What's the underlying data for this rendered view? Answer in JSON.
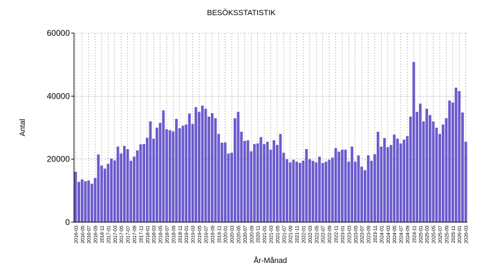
{
  "chart_data": {
    "type": "bar",
    "title": "BESÖKSSTATISTIK",
    "x_label": "År-Månad",
    "y_label": "Antal",
    "categories": [
      "2016-03",
      null,
      "2016-05",
      null,
      "2016-07",
      null,
      "2016-09",
      null,
      "2016-11",
      null,
      "2017-01",
      null,
      "2017-03",
      null,
      "2017-05",
      null,
      "2017-07",
      null,
      "2017-09",
      null,
      "2017-11",
      null,
      "2018-01",
      null,
      "2018-03",
      null,
      "2018-05",
      null,
      "2018-07",
      null,
      "2018-09",
      null,
      "2018-11",
      null,
      "2019-01",
      null,
      "2019-03",
      null,
      "2019-05",
      null,
      "2019-07",
      null,
      "2019-09",
      null,
      "2019-11",
      null,
      "2020-01",
      null,
      "2020-03",
      null,
      "2020-05",
      null,
      "2020-07",
      null,
      "2020-09",
      null,
      "2020-11",
      null,
      "2021-01",
      null,
      "2021-03",
      null,
      "2021-05",
      null,
      "2021-07",
      null,
      "2021-09",
      null,
      "2021-11",
      null,
      "2022-01",
      null,
      "2022-03",
      null,
      "2022-05",
      null,
      "2022-07",
      null,
      "2022-09",
      null,
      "2022-11",
      null,
      "2023-01",
      null,
      "2023-03",
      null,
      "2023-05",
      null,
      "2023-07",
      null,
      "2023-09",
      null,
      "2023-11",
      null,
      "2024-01",
      null,
      "2024-03",
      null,
      "2024-05",
      null,
      "2024-07",
      null,
      "2024-09",
      null,
      "2024-11",
      null,
      "2025-01",
      null,
      "2025-03",
      null,
      "2025-05",
      null,
      "2025-07",
      null,
      "2025-09",
      null,
      "2025-11",
      null,
      "2026-01",
      null,
      "2026-03"
    ],
    "values": [
      16000,
      12800,
      13600,
      13000,
      13200,
      12200,
      14000,
      21500,
      18000,
      17000,
      18500,
      20200,
      19600,
      24000,
      21800,
      24200,
      23200,
      19500,
      20800,
      22800,
      24700,
      24800,
      26800,
      32000,
      26500,
      30000,
      31500,
      35500,
      29500,
      29200,
      28800,
      32800,
      29800,
      30600,
      31000,
      34500,
      31200,
      36500,
      35000,
      37000,
      36000,
      33500,
      34600,
      33000,
      28000,
      25200,
      25300,
      21800,
      22000,
      33000,
      35000,
      28700,
      25800,
      26000,
      22500,
      24800,
      25000,
      27000,
      24800,
      25500,
      23000,
      26000,
      24500,
      28000,
      22000,
      20000,
      19000,
      19800,
      19200,
      18800,
      19500,
      23200,
      20000,
      19500,
      19000,
      20800,
      18800,
      19200,
      19800,
      20500,
      23500,
      22400,
      23000,
      23000,
      19200,
      24000,
      19200,
      21200,
      17600,
      16500,
      21200,
      19500,
      21600,
      28700,
      24000,
      26700,
      23800,
      24500,
      27800,
      26500,
      25000,
      26200,
      27300,
      33500,
      50800,
      35000,
      37600,
      32000,
      36000,
      34000,
      32000,
      30000,
      28000,
      31000,
      33000,
      38600,
      38000,
      42700,
      41600,
      34800,
      25500
    ],
    "color": "#6a5acd",
    "ylim": [
      0,
      60000
    ],
    "yticks": [
      0,
      20000,
      40000,
      60000
    ],
    "grid": true
  }
}
